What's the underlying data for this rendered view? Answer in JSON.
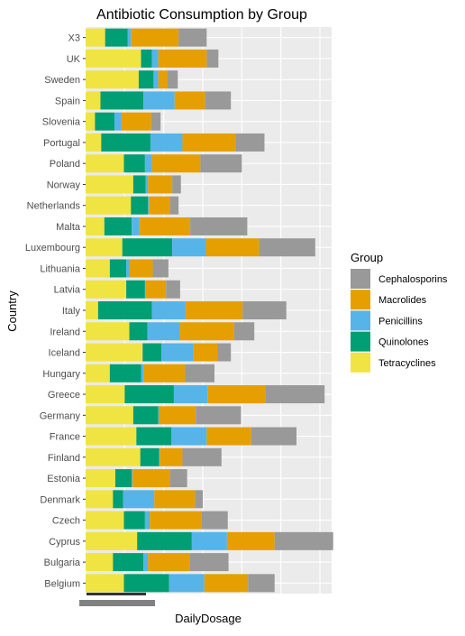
{
  "chart_data": {
    "type": "bar",
    "orientation": "horizontal",
    "stacked": true,
    "title": "Antibiotic Consumption by Group",
    "xlabel": "DailyDosage",
    "ylabel": "Country",
    "xlim": [
      0,
      31.5
    ],
    "x_tick_labels_legible": false,
    "grid": true,
    "background": "#ebebeb",
    "legend": {
      "title": "Group",
      "position": "right",
      "entries": [
        "Cephalosporins",
        "Macrolides",
        "Penicillins",
        "Quinolones",
        "Tetracyclines"
      ]
    },
    "stack_order": [
      "Tetracyclines",
      "Quinolones",
      "Penicillins",
      "Macrolides",
      "Cephalosporins"
    ],
    "categories": [
      "Belgium",
      "Bulgaria",
      "Cyprus",
      "Czech",
      "Denmark",
      "Estonia",
      "Finland",
      "France",
      "Germany",
      "Greece",
      "Hungary",
      "Iceland",
      "Ireland",
      "Italy",
      "Latvia",
      "Lithuania",
      "Luxembourg",
      "Malta",
      "Netherlands",
      "Norway",
      "Poland",
      "Portugal",
      "Slovenia",
      "Spain",
      "Sweden",
      "UK",
      "X3"
    ],
    "series": [
      {
        "name": "Tetracyclines",
        "color": "#f0e442",
        "values": [
          4.9,
          3.5,
          6.6,
          4.9,
          3.5,
          3.8,
          7.0,
          6.5,
          6.1,
          5.0,
          3.1,
          7.3,
          5.6,
          1.6,
          5.2,
          3.1,
          4.7,
          2.4,
          5.8,
          6.1,
          4.9,
          2.0,
          1.2,
          1.9,
          6.8,
          7.1,
          2.5
        ]
      },
      {
        "name": "Quinolones",
        "color": "#009e73",
        "values": [
          5.8,
          3.9,
          7.0,
          2.7,
          1.3,
          2.1,
          2.4,
          4.5,
          3.2,
          6.3,
          4.0,
          2.4,
          2.3,
          6.9,
          2.4,
          2.1,
          6.4,
          3.5,
          2.2,
          1.6,
          2.7,
          6.3,
          2.5,
          5.5,
          1.9,
          1.4,
          2.9
        ]
      },
      {
        "name": "Penicillins",
        "color": "#56b4e9",
        "values": [
          4.5,
          0.6,
          4.5,
          0.6,
          4.0,
          0.1,
          0.1,
          4.5,
          0.1,
          4.3,
          0.3,
          4.1,
          4.1,
          4.3,
          0.1,
          0.4,
          4.3,
          1.0,
          0.1,
          0.3,
          0.9,
          4.1,
          0.9,
          4.0,
          0.6,
          0.8,
          0.4
        ]
      },
      {
        "name": "Macrolides",
        "color": "#e69f00",
        "values": [
          5.6,
          5.3,
          6.1,
          6.6,
          5.2,
          4.8,
          2.9,
          5.7,
          4.7,
          7.4,
          5.3,
          3.1,
          7.0,
          7.3,
          2.6,
          3.0,
          6.8,
          6.5,
          2.7,
          3.1,
          6.2,
          6.8,
          3.8,
          3.9,
          1.2,
          6.2,
          6.1
        ]
      },
      {
        "name": "Cephalosporins",
        "color": "#999999",
        "values": [
          3.4,
          5.0,
          7.5,
          3.4,
          1.0,
          2.2,
          5.0,
          5.8,
          5.8,
          7.6,
          3.8,
          1.7,
          2.6,
          5.6,
          1.8,
          2.0,
          7.2,
          7.3,
          1.1,
          1.1,
          5.3,
          3.7,
          1.2,
          3.3,
          1.3,
          1.5,
          3.6
        ]
      }
    ]
  }
}
